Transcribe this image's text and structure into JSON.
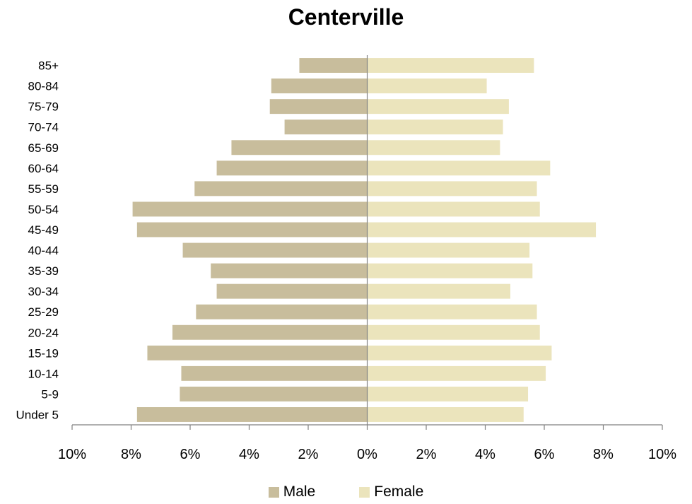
{
  "chart_data": {
    "type": "bar",
    "orientation": "horizontal-population-pyramid",
    "title": "Centerville",
    "categories": [
      "85+",
      "80-84",
      "75-79",
      "70-74",
      "65-69",
      "60-64",
      "55-59",
      "50-54",
      "45-49",
      "40-44",
      "35-39",
      "30-34",
      "25-29",
      "20-24",
      "15-19",
      "10-14",
      "5-9",
      "Under 5"
    ],
    "series": [
      {
        "name": "Male",
        "color": "#c8bd9c",
        "values": [
          2.3,
          3.25,
          3.3,
          2.8,
          4.6,
          5.1,
          5.85,
          7.95,
          7.8,
          6.25,
          5.3,
          5.1,
          5.8,
          6.6,
          7.45,
          6.3,
          6.35,
          7.8
        ]
      },
      {
        "name": "Female",
        "color": "#ebe4bc",
        "values": [
          5.65,
          4.05,
          4.8,
          4.6,
          4.5,
          6.2,
          5.75,
          5.85,
          7.75,
          5.5,
          5.6,
          4.85,
          5.75,
          5.85,
          6.25,
          6.05,
          5.45,
          5.3
        ]
      }
    ],
    "x_ticks": [
      "10%",
      "8%",
      "6%",
      "4%",
      "2%",
      "0%",
      "2%",
      "4%",
      "6%",
      "8%",
      "10%"
    ],
    "xlim": [
      -10,
      10
    ],
    "xlabel": "",
    "ylabel": "",
    "grid": false,
    "legend_position": "bottom"
  }
}
